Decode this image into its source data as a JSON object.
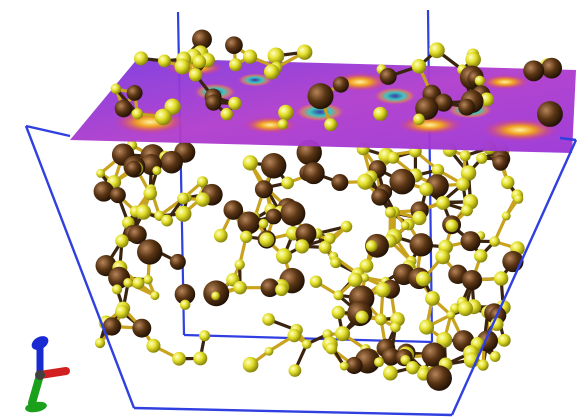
{
  "scene": {
    "subject": "molecular-dynamics-render",
    "colors": {
      "background": "#ffffff",
      "box_edge": "#2f3fe0",
      "atom_light": "#e4e02a",
      "atom_dark": "#5a3514",
      "bond": "#c9a21e",
      "plane_base": "#a23ad2",
      "plane_ring": "#3cc7c2",
      "plane_hot": "#f0a020",
      "axis_x": "#d22020",
      "axis_y": "#1aa01a",
      "axis_z": "#1a2ad2"
    },
    "icons": {
      "axis_gizmo": "axis-triad-icon"
    }
  }
}
